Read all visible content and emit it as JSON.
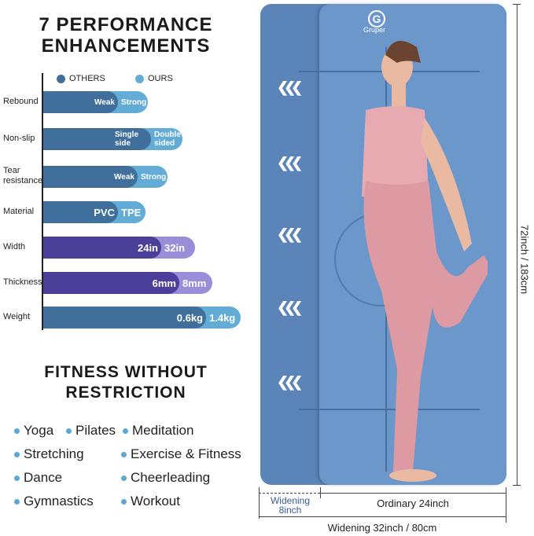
{
  "left": {
    "title_line1": "7 PERFORMANCE",
    "title_line2": "ENHANCEMENTS",
    "legend": {
      "others": "OTHERS",
      "ours": "OURS"
    },
    "colors": {
      "others_blue": "#3f6f9a",
      "ours_blue": "#63acd6",
      "others_purple": "#4c3f99",
      "ours_purple": "#9a8ed8"
    },
    "rows": [
      {
        "label": "Rebound",
        "others": "Weak",
        "ours": "Strong"
      },
      {
        "label": "Non-slip",
        "others": "Single side",
        "ours": "Double sided"
      },
      {
        "label": "Tear resistance",
        "others": "Weak",
        "ours": "Strong"
      },
      {
        "label": "Material",
        "others": "PVC",
        "ours": "TPE"
      },
      {
        "label": "Width",
        "others": "24in",
        "ours": "32in"
      },
      {
        "label": "Thickness",
        "others": "6mm",
        "ours": "8mm"
      },
      {
        "label": "Weight",
        "others": "0.6kg",
        "ours": "1.4kg"
      }
    ],
    "fitness_title_line1": "FITNESS WITHOUT",
    "fitness_title_line2": "RESTRICTION",
    "activities": [
      "Yoga",
      "Pilates",
      "Meditation",
      "Stretching",
      "Exercise & Fitness",
      "Dance",
      "Cheerleading",
      "Gymnastics",
      "Workout"
    ]
  },
  "right": {
    "brand": "Gruper",
    "height_label": "72inch / 183cm",
    "widening_label": "Widening 8inch",
    "ordinary_label": "Ordinary 24inch",
    "total_label": "Widening 32inch / 80cm",
    "mat_color": "#5b84b8",
    "arrow_icon": "chevron-triple-left"
  }
}
